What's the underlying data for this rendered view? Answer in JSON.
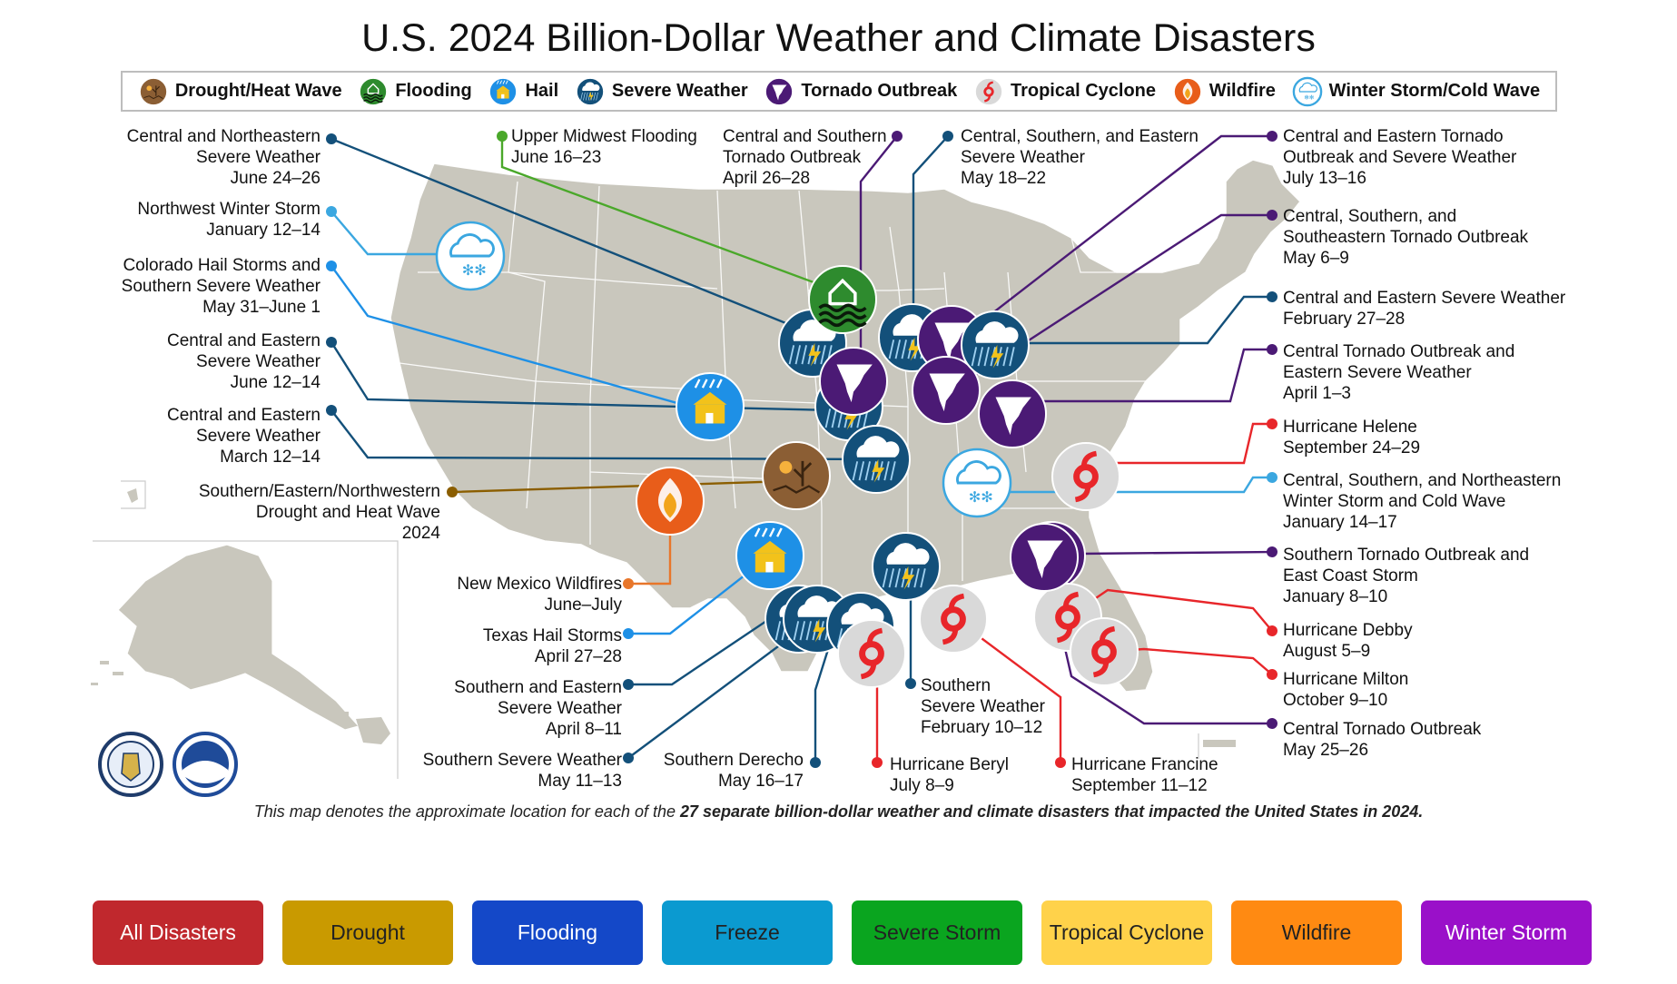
{
  "title": "U.S. 2024 Billion-Dollar Weather and Climate Disasters",
  "legend": [
    {
      "icon": "drought-heat-icon",
      "label": "Drought/Heat Wave",
      "color": "#8b5e34"
    },
    {
      "icon": "flooding-icon",
      "label": "Flooding",
      "color": "#2e8b2e"
    },
    {
      "icon": "hail-icon",
      "label": "Hail",
      "color": "#1e90e6"
    },
    {
      "icon": "severe-weather-icon",
      "label": "Severe Weather",
      "color": "#13507a"
    },
    {
      "icon": "tornado-icon",
      "label": "Tornado Outbreak",
      "color": "#4b1a75"
    },
    {
      "icon": "tropical-cyclone-icon",
      "label": "Tropical Cyclone",
      "color": "#e8262a"
    },
    {
      "icon": "wildfire-icon",
      "label": "Wildfire",
      "color": "#e85d1a"
    },
    {
      "icon": "winter-storm-icon",
      "label": "Winter Storm/Cold Wave",
      "color": "#3ba7e0"
    }
  ],
  "events": [
    {
      "lines": [
        "Central and Northeastern",
        "Severe Weather",
        "June 24–26"
      ],
      "type": "severe",
      "color": "#13507a"
    },
    {
      "lines": [
        "Northwest Winter Storm",
        "January 12–14"
      ],
      "type": "winter",
      "color": "#3ba7e0"
    },
    {
      "lines": [
        "Colorado Hail Storms and",
        "Southern Severe Weather",
        "May 31–June 1"
      ],
      "type": "hail",
      "color": "#1e90e6"
    },
    {
      "lines": [
        "Central and Eastern",
        "Severe Weather",
        "June 12–14"
      ],
      "type": "severe",
      "color": "#13507a"
    },
    {
      "lines": [
        "Central and Eastern",
        "Severe Weather",
        "March 12–14"
      ],
      "type": "severe",
      "color": "#13507a"
    },
    {
      "lines": [
        "Southern/Eastern/Northwestern",
        "Drought and Heat Wave",
        "2024"
      ],
      "type": "drought",
      "color": "#8b5e00"
    },
    {
      "lines": [
        "New Mexico Wildfires",
        "June–July"
      ],
      "type": "wildfire",
      "color": "#e8762a"
    },
    {
      "lines": [
        "Texas Hail Storms",
        "April 27–28"
      ],
      "type": "hail",
      "color": "#1e90e6"
    },
    {
      "lines": [
        "Southern and Eastern",
        "Severe Weather",
        "April 8–11"
      ],
      "type": "severe",
      "color": "#13507a"
    },
    {
      "lines": [
        "Southern Severe Weather",
        "May 11–13"
      ],
      "type": "severe",
      "color": "#13507a"
    },
    {
      "lines": [
        "Southern Derecho",
        "May 16–17"
      ],
      "type": "severe",
      "color": "#13507a"
    },
    {
      "lines": [
        "Upper Midwest Flooding",
        "June 16–23"
      ],
      "type": "flooding",
      "color": "#4aa82a"
    },
    {
      "lines": [
        "Central and Southern",
        "Tornado Outbreak",
        "April 26–28"
      ],
      "type": "tornado",
      "color": "#4b1a75"
    },
    {
      "lines": [
        "Central, Southern, and Eastern",
        "Severe Weather",
        "May 18–22"
      ],
      "type": "severe",
      "color": "#13507a"
    },
    {
      "lines": [
        "Southern",
        "Severe Weather",
        "February 10–12"
      ],
      "type": "severe",
      "color": "#13507a"
    },
    {
      "lines": [
        "Hurricane Beryl",
        "July 8–9"
      ],
      "type": "cyclone",
      "color": "#e8262a"
    },
    {
      "lines": [
        "Hurricane Francine",
        "September 11–12"
      ],
      "type": "cyclone",
      "color": "#e8262a"
    },
    {
      "lines": [
        "Central and Eastern Tornado",
        "Outbreak and Severe Weather",
        "July 13–16"
      ],
      "type": "tornado",
      "color": "#4b1a75"
    },
    {
      "lines": [
        "Central, Southern, and",
        "Southeastern Tornado Outbreak",
        "May 6–9"
      ],
      "type": "tornado",
      "color": "#4b1a75"
    },
    {
      "lines": [
        "Central and Eastern Severe Weather",
        "February 27–28"
      ],
      "type": "severe",
      "color": "#13507a"
    },
    {
      "lines": [
        "Central Tornado Outbreak and",
        "Eastern Severe Weather",
        "April 1–3"
      ],
      "type": "tornado",
      "color": "#4b1a75"
    },
    {
      "lines": [
        "Hurricane Helene",
        "September 24–29"
      ],
      "type": "cyclone",
      "color": "#e8262a"
    },
    {
      "lines": [
        "Central, Southern, and Northeastern",
        "Winter Storm and Cold Wave",
        "January 14–17"
      ],
      "type": "winter",
      "color": "#3ba7e0"
    },
    {
      "lines": [
        "Southern Tornado Outbreak and",
        "East Coast Storm",
        "January 8–10"
      ],
      "type": "tornado",
      "color": "#4b1a75"
    },
    {
      "lines": [
        "Hurricane Debby",
        "August 5–9"
      ],
      "type": "cyclone",
      "color": "#e8262a"
    },
    {
      "lines": [
        "Hurricane Milton",
        "October 9–10"
      ],
      "type": "cyclone",
      "color": "#e8262a"
    },
    {
      "lines": [
        "Central Tornado Outbreak",
        "May 25–26"
      ],
      "type": "tornado",
      "color": "#4b1a75"
    }
  ],
  "footnote": {
    "before": "This map denotes the approximate location for each of the ",
    "bold": "27 separate billion-dollar weather and climate disasters that impacted the United States in 2024.",
    "after": ""
  },
  "filters": [
    {
      "label": "All Disasters",
      "color": "#c0282d"
    },
    {
      "label": "Drought",
      "color": "#c99a00"
    },
    {
      "label": "Flooding",
      "color": "#1448c8"
    },
    {
      "label": "Freeze",
      "color": "#0b9ad0"
    },
    {
      "label": "Severe Storm",
      "color": "#0aa51f"
    },
    {
      "label": "Tropical Cyclone",
      "color": "#ffd24a"
    },
    {
      "label": "Wildfire",
      "color": "#ff8a12"
    },
    {
      "label": "Winter Storm",
      "color": "#9a10c9"
    }
  ],
  "icon_colors": {
    "severe_bg": "#13507a",
    "tornado_bg": "#4b1a75",
    "cyclone_bg": "#d9d9d9",
    "cyclone_fg": "#e8262a",
    "hail_bg": "#1e90e6",
    "hail_fg": "#f2c21b",
    "flood_bg": "#2e8b2e",
    "drought_bg": "#8b5e34",
    "wildfire_bg": "#e85d1a",
    "winter_bg": "#ffffff",
    "winter_fg": "#3ba7e0",
    "land": "#c9c7bd",
    "state_lines": "#ffffff"
  },
  "seals": [
    "department-of-commerce-seal",
    "noaa-logo"
  ]
}
